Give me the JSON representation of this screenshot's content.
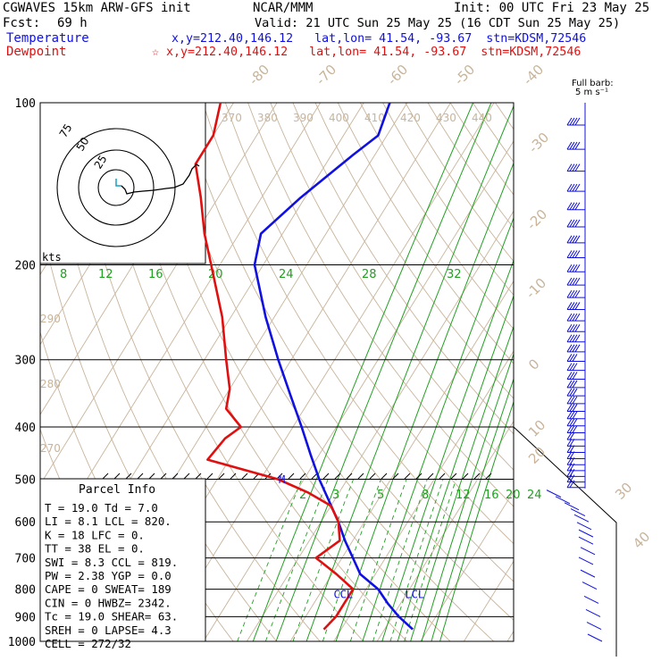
{
  "header": {
    "model": "CGWAVES 15km ARW-GFS init",
    "fcst_label": "Fcst:",
    "fcst_value": "69 h",
    "center": "NCAR/MMM",
    "init": "Init: 00 UTC Fri 23 May 25",
    "valid": "Valid: 21 UTC Sun 25 May 25 (16 CDT Sun 25 May 25)",
    "temp_label": "Temperature",
    "dew_label": "Dewpoint",
    "temp_loc": "x,y=212.40,146.12   lat,lon= 41.54, -93.67  stn=KDSM,72546",
    "dew_loc": "☆ x,y=212.40,146.12   lat,lon= 41.54, -93.67  stn=KDSM,72546"
  },
  "colors": {
    "temperature": "#1010e0",
    "dewpoint": "#e01010",
    "isotherm": "#c8b49a",
    "mixing_ratio": "#20a020",
    "axes": "#000000"
  },
  "chart_data": {
    "type": "line",
    "diagram": "skew-T log-p",
    "pressure_levels": [
      100,
      200,
      300,
      400,
      500,
      600,
      700,
      800,
      900,
      1000
    ],
    "y_range": [
      100,
      1000
    ],
    "isotherm_labels": [
      -80,
      -70,
      -60,
      -50,
      -40,
      -30,
      -20,
      -10,
      0,
      10,
      20,
      30,
      40
    ],
    "theta_labels": [
      370,
      380,
      390,
      400,
      410,
      420,
      430,
      440
    ],
    "dry_adiabat_labels": [
      290,
      280,
      270
    ],
    "mixing_ratio_upper": [
      8,
      12,
      16,
      20,
      24,
      28,
      32
    ],
    "mixing_ratio_lower": [
      2,
      3,
      5,
      8,
      12,
      16,
      20,
      24
    ],
    "series": [
      {
        "name": "Temperature",
        "color": "#1010e0",
        "p": [
          950,
          900,
          850,
          800,
          750,
          700,
          650,
          600,
          550,
          500,
          450,
          400,
          350,
          300,
          250,
          200,
          175,
          150,
          125,
          115,
          100
        ],
        "t": [
          26.5,
          21.5,
          17,
          12.8,
          6.5,
          2.5,
          -1.8,
          -6,
          -11,
          -16.5,
          -22,
          -28,
          -35,
          -43,
          -52,
          -62,
          -65,
          -61,
          -55,
          -52,
          -54
        ]
      },
      {
        "name": "Dewpoint",
        "color": "#e01010",
        "p": [
          950,
          900,
          850,
          800,
          750,
          700,
          650,
          600,
          560,
          530,
          500,
          460,
          420,
          400,
          370,
          340,
          300,
          250,
          200,
          175,
          150,
          130,
          115,
          100
        ],
        "t": [
          6,
          7,
          7,
          7,
          1,
          -6,
          -3,
          -6,
          -10,
          -17,
          -26,
          -45,
          -44,
          -42,
          -48,
          -50,
          -55,
          -62,
          -72,
          -78,
          -84,
          -90,
          -90,
          -93
        ]
      }
    ],
    "ccl_label": "CCL",
    "lcl_label": "LCL",
    "m_label": "M",
    "ccl_p": 800,
    "lcl_p": 800
  },
  "hodograph": {
    "units_label": "kts",
    "rings": [
      "25",
      "50",
      "75"
    ]
  },
  "barbs": {
    "title_line1": "Full barb:",
    "title_line2": "5 m s⁻¹"
  },
  "parcel_info": {
    "title": "Parcel Info",
    "rows": [
      "T  =    19.0 Td =   7.0",
      "LI =     8.1 LCL =  820.",
      "K  =      18 LFC =    0.",
      "TT =      38 EL  =    0.",
      "SWI =    8.3 CCL =  819.",
      "PW =    2.38 YGP =  0.0",
      "CAPE =     0 SWEAT=  189",
      "CIN =      0 HWBZ= 2342.",
      "Tc =    19.0 SHEAR=  63.",
      "SREH =     0 LAPSE=  4.3",
      "CELL = 272/32"
    ]
  }
}
